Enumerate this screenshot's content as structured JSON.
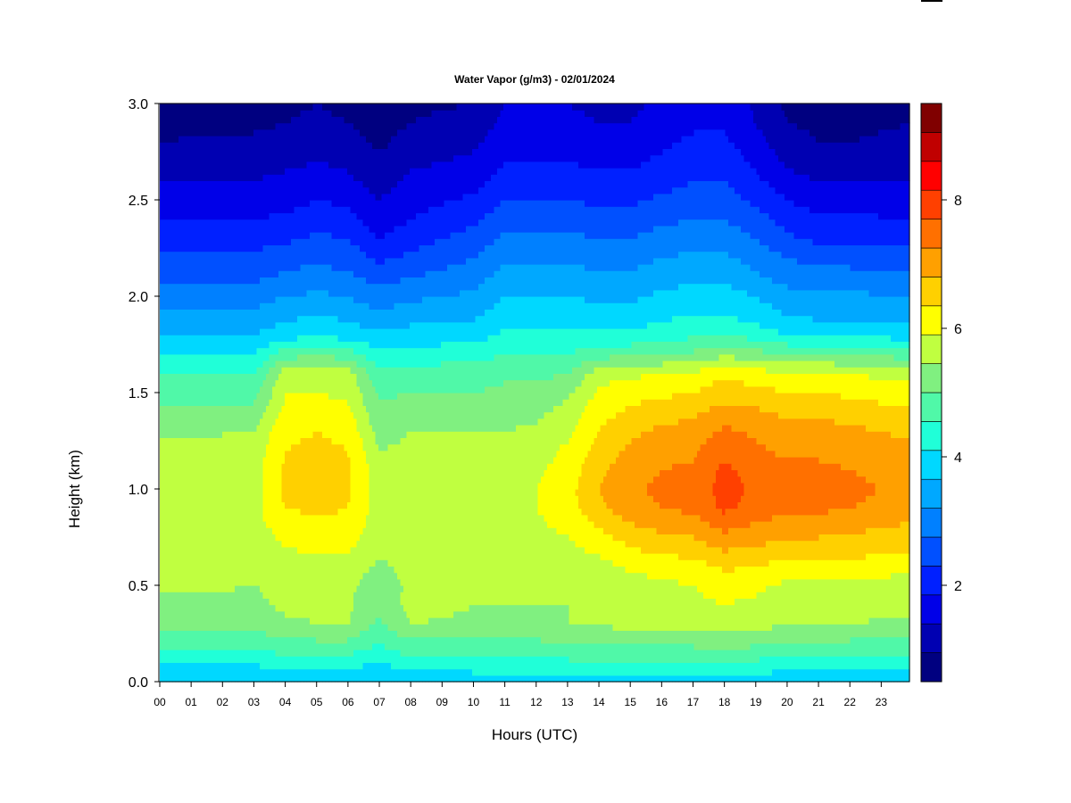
{
  "chart_data": {
    "type": "heatmap",
    "title": "Water Vapor (g/m3) - 02/01/2024",
    "xlabel": "Hours (UTC)",
    "ylabel": "Height (km)",
    "x_tick_labels": [
      "00",
      "01",
      "02",
      "03",
      "04",
      "05",
      "06",
      "07",
      "08",
      "09",
      "10",
      "11",
      "12",
      "13",
      "14",
      "15",
      "16",
      "17",
      "18",
      "19",
      "20",
      "21",
      "22",
      "23"
    ],
    "x_range_hours": [
      0,
      23.9
    ],
    "y_tick_labels": [
      "0.0",
      "0.5",
      "1.0",
      "1.5",
      "2.0",
      "2.5",
      "3.0"
    ],
    "y_range_km": [
      0.0,
      3.0
    ],
    "colorbar": {
      "tick_labels": [
        "2",
        "4",
        "6",
        "8"
      ],
      "tick_values": [
        2,
        4,
        6,
        8
      ],
      "range": [
        0.5,
        9.5
      ],
      "level_step": 0.5,
      "colors": [
        "#000080",
        "#0000b2",
        "#0000e8",
        "#0020ff",
        "#0050ff",
        "#0080ff",
        "#00a8ff",
        "#00d8ff",
        "#20ffd8",
        "#50f8a8",
        "#80f080",
        "#c0ff40",
        "#ffff00",
        "#ffd000",
        "#ffa000",
        "#ff7000",
        "#ff4000",
        "#ff0000",
        "#c00000",
        "#800000"
      ]
    },
    "height_samples_km": [
      0.0,
      0.1,
      0.2,
      0.3,
      0.4,
      0.5,
      0.6,
      0.7,
      0.8,
      0.9,
      1.0,
      1.1,
      1.2,
      1.3,
      1.4,
      1.5,
      1.6,
      1.7,
      1.8,
      1.9,
      2.0,
      2.1,
      2.2,
      2.3,
      2.4,
      2.5,
      2.6,
      2.7,
      2.8,
      2.9,
      3.0
    ],
    "profile_hours": [
      0,
      3,
      4,
      5,
      6,
      7,
      8,
      10,
      11,
      12,
      13,
      14,
      15,
      16,
      17,
      18,
      19,
      20,
      21,
      22,
      23.9
    ],
    "profiles_g_m3": [
      [
        3.9,
        4.6,
        5.2,
        5.6,
        5.9,
        6.1,
        6.3,
        6.4,
        6.4,
        6.2,
        6.3,
        6.3,
        6.1,
        5.9,
        5.6,
        5.3,
        5.0,
        4.5,
        4.0,
        3.6,
        3.3,
        2.9,
        2.6,
        2.3,
        2.0,
        1.7,
        1.5,
        1.3,
        1.0,
        0.9,
        0.8
      ],
      [
        3.9,
        4.6,
        5.2,
        5.6,
        5.9,
        6.0,
        6.2,
        6.4,
        6.4,
        6.3,
        6.3,
        6.3,
        6.2,
        6.0,
        5.7,
        5.3,
        5.0,
        4.5,
        4.0,
        3.6,
        3.3,
        2.9,
        2.6,
        2.3,
        2.0,
        1.7,
        1.5,
        1.3,
        1.1,
        0.9,
        0.8
      ],
      [
        4.0,
        4.7,
        5.4,
        5.9,
        6.1,
        6.1,
        6.3,
        6.5,
        6.6,
        7.0,
        7.1,
        7.1,
        7.0,
        6.9,
        6.6,
        6.5,
        6.3,
        5.3,
        4.3,
        3.9,
        3.5,
        3.1,
        2.8,
        2.4,
        2.1,
        1.8,
        1.6,
        1.4,
        1.2,
        1.0,
        0.9
      ],
      [
        4.0,
        4.7,
        5.4,
        6.0,
        6.1,
        6.1,
        6.3,
        6.6,
        6.9,
        7.1,
        7.2,
        7.2,
        7.1,
        7.0,
        6.7,
        6.5,
        6.3,
        5.4,
        4.4,
        4.0,
        3.6,
        3.2,
        2.9,
        2.6,
        2.3,
        2.0,
        1.7,
        1.5,
        1.3,
        1.1,
        1.0
      ],
      [
        4.0,
        4.7,
        5.4,
        6.0,
        6.1,
        6.1,
        6.3,
        6.6,
        6.8,
        7.0,
        7.1,
        7.1,
        7.0,
        6.9,
        6.6,
        6.4,
        6.3,
        5.3,
        4.3,
        3.9,
        3.5,
        3.1,
        2.8,
        2.5,
        2.2,
        1.9,
        1.6,
        1.4,
        1.2,
        1.0,
        0.9
      ],
      [
        3.9,
        4.5,
        5.0,
        5.4,
        5.6,
        5.7,
        5.9,
        6.1,
        6.2,
        6.3,
        6.2,
        6.2,
        6.0,
        5.8,
        5.6,
        5.4,
        5.1,
        4.6,
        4.1,
        3.6,
        3.2,
        2.8,
        2.4,
        2.0,
        1.7,
        1.5,
        1.3,
        1.1,
        0.9,
        0.8,
        0.7
      ],
      [
        4.1,
        4.8,
        5.4,
        6.0,
        6.2,
        6.1,
        6.2,
        6.3,
        6.4,
        6.3,
        6.3,
        6.2,
        6.1,
        6.0,
        5.8,
        5.5,
        5.2,
        4.7,
        4.2,
        3.8,
        3.4,
        3.0,
        2.6,
        2.3,
        2.0,
        1.8,
        1.6,
        1.4,
        1.2,
        1.0,
        0.9
      ],
      [
        4.2,
        4.8,
        5.4,
        5.9,
        6.0,
        6.0,
        6.1,
        6.2,
        6.2,
        6.3,
        6.3,
        6.2,
        6.1,
        6.0,
        5.8,
        5.5,
        5.3,
        4.8,
        4.3,
        3.9,
        3.6,
        3.3,
        3.0,
        2.7,
        2.4,
        2.1,
        1.8,
        1.6,
        1.4,
        1.2,
        1.0
      ],
      [
        4.2,
        4.8,
        5.4,
        5.9,
        6.0,
        6.0,
        6.1,
        6.2,
        6.2,
        6.3,
        6.3,
        6.2,
        6.1,
        6.0,
        5.8,
        5.6,
        5.4,
        5.0,
        4.6,
        4.3,
        4.0,
        3.7,
        3.4,
        3.1,
        2.8,
        2.5,
        2.2,
        2.0,
        1.8,
        1.6,
        1.5
      ],
      [
        4.2,
        4.9,
        5.4,
        5.9,
        6.0,
        6.0,
        6.1,
        6.3,
        6.4,
        6.5,
        6.5,
        6.4,
        6.3,
        6.1,
        5.9,
        5.6,
        5.4,
        5.0,
        4.6,
        4.3,
        4.0,
        3.7,
        3.4,
        3.1,
        2.8,
        2.5,
        2.2,
        2.0,
        1.8,
        1.6,
        1.5
      ],
      [
        4.2,
        4.9,
        5.5,
        6.0,
        6.0,
        6.0,
        6.2,
        6.4,
        6.6,
        6.8,
        6.8,
        6.7,
        6.6,
        6.4,
        6.2,
        5.9,
        5.5,
        5.0,
        4.6,
        4.3,
        4.0,
        3.7,
        3.4,
        3.1,
        2.8,
        2.5,
        2.2,
        2.0,
        1.8,
        1.6,
        1.5
      ],
      [
        4.2,
        4.9,
        5.5,
        6.0,
        6.1,
        6.1,
        6.3,
        6.7,
        7.0,
        7.4,
        7.5,
        7.4,
        7.2,
        7.0,
        6.8,
        6.6,
        6.3,
        5.3,
        4.6,
        4.2,
        3.9,
        3.6,
        3.3,
        3.0,
        2.7,
        2.4,
        2.1,
        1.9,
        1.7,
        1.5,
        1.4
      ],
      [
        4.3,
        5.0,
        5.6,
        6.2,
        6.3,
        6.3,
        6.6,
        7.0,
        7.4,
        7.8,
        7.9,
        7.8,
        7.6,
        7.4,
        7.1,
        6.8,
        6.4,
        5.4,
        4.6,
        4.2,
        3.9,
        3.6,
        3.3,
        3.0,
        2.7,
        2.4,
        2.1,
        1.9,
        1.7,
        1.5,
        1.4
      ],
      [
        4.3,
        5.0,
        5.6,
        6.2,
        6.3,
        6.4,
        6.7,
        7.2,
        7.6,
        8.0,
        8.1,
        8.0,
        7.8,
        7.6,
        7.3,
        6.9,
        6.5,
        5.5,
        4.8,
        4.4,
        4.1,
        3.8,
        3.5,
        3.2,
        2.9,
        2.6,
        2.3,
        2.1,
        1.9,
        1.7,
        1.6
      ],
      [
        4.3,
        5.0,
        5.6,
        6.2,
        6.4,
        6.5,
        6.8,
        7.3,
        7.7,
        8.1,
        8.2,
        8.1,
        7.9,
        7.7,
        7.4,
        7.0,
        6.6,
        5.6,
        4.9,
        4.5,
        4.2,
        3.9,
        3.6,
        3.3,
        3.0,
        2.7,
        2.5,
        2.3,
        2.1,
        1.9,
        1.8
      ],
      [
        4.3,
        5.0,
        5.7,
        6.3,
        6.5,
        6.7,
        7.1,
        7.6,
        8.1,
        8.6,
        8.7,
        8.6,
        8.4,
        8.1,
        7.7,
        7.3,
        6.9,
        5.9,
        5.0,
        4.5,
        4.2,
        3.9,
        3.6,
        3.3,
        3.0,
        2.7,
        2.5,
        2.3,
        2.1,
        1.9,
        1.8
      ],
      [
        4.2,
        4.9,
        5.6,
        6.2,
        6.4,
        6.6,
        7.0,
        7.5,
        7.9,
        8.3,
        8.4,
        8.3,
        8.1,
        7.9,
        7.6,
        7.2,
        6.7,
        5.7,
        4.8,
        4.3,
        4.0,
        3.6,
        3.3,
        3.0,
        2.7,
        2.4,
        2.1,
        1.9,
        1.7,
        1.5,
        1.4
      ],
      [
        4.1,
        4.8,
        5.4,
        6.0,
        6.2,
        6.4,
        6.8,
        7.3,
        7.7,
        8.1,
        8.2,
        8.1,
        7.9,
        7.7,
        7.4,
        7.0,
        6.6,
        5.5,
        4.5,
        4.0,
        3.7,
        3.3,
        3.0,
        2.6,
        2.3,
        2.0,
        1.7,
        1.4,
        1.2,
        1.0,
        0.9
      ],
      [
        4.1,
        4.8,
        5.4,
        6.0,
        6.2,
        6.4,
        6.8,
        7.3,
        7.7,
        8.1,
        8.2,
        8.1,
        7.9,
        7.7,
        7.4,
        7.0,
        6.6,
        5.5,
        4.4,
        3.9,
        3.6,
        3.2,
        2.8,
        2.4,
        2.1,
        1.8,
        1.5,
        1.2,
        1.0,
        0.9,
        0.8
      ],
      [
        4.1,
        4.8,
        5.4,
        6.0,
        6.2,
        6.4,
        6.8,
        7.3,
        7.6,
        8.0,
        8.1,
        8.0,
        7.8,
        7.6,
        7.3,
        6.9,
        6.5,
        5.4,
        4.4,
        3.9,
        3.6,
        3.2,
        2.8,
        2.4,
        2.1,
        1.8,
        1.5,
        1.2,
        1.0,
        0.9,
        0.8
      ],
      [
        4.0,
        4.7,
        5.3,
        5.9,
        6.1,
        6.3,
        6.6,
        7.1,
        7.4,
        7.8,
        7.9,
        7.8,
        7.6,
        7.4,
        7.1,
        6.7,
        6.3,
        5.3,
        4.3,
        3.8,
        3.5,
        3.1,
        2.7,
        2.3,
        2.0,
        1.7,
        1.5,
        1.3,
        1.1,
        1.0,
        0.9
      ]
    ]
  }
}
